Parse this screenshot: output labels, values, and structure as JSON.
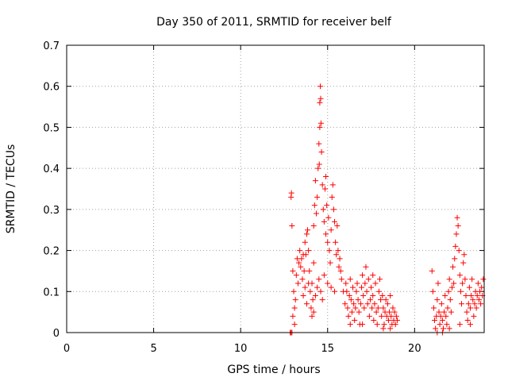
{
  "chart_data": {
    "type": "scatter",
    "title": "Day 350 of 2011, SRMTID for receiver belf",
    "xlabel": "GPS time / hours",
    "ylabel": "SRMTID / TECUs",
    "xlim": [
      0,
      24
    ],
    "ylim": [
      0,
      0.7
    ],
    "xticks": [
      0,
      5,
      10,
      15,
      20
    ],
    "xtick_labels": [
      "0",
      "5",
      "10",
      "15",
      "20"
    ],
    "yticks": [
      0,
      0.1,
      0.2,
      0.3,
      0.4,
      0.5,
      0.6,
      0.7
    ],
    "ytick_labels": [
      "0",
      "0.1",
      "0.2",
      "0.3",
      "0.4",
      "0.5",
      "0.6",
      "0.7"
    ],
    "grid": true,
    "marker": "+",
    "color": "#ff0000",
    "series": [
      {
        "name": "SRMTID",
        "points": [
          [
            12.85,
            0.0
          ],
          [
            12.9,
            0.0
          ],
          [
            12.95,
            0.0
          ],
          [
            12.9,
            0.33
          ],
          [
            12.92,
            0.34
          ],
          [
            12.95,
            0.26
          ],
          [
            13.0,
            0.15
          ],
          [
            13.05,
            0.1
          ],
          [
            13.1,
            0.06
          ],
          [
            13.1,
            0.02
          ],
          [
            13.0,
            0.04
          ],
          [
            13.15,
            0.08
          ],
          [
            13.2,
            0.14
          ],
          [
            13.25,
            0.18
          ],
          [
            13.3,
            0.12
          ],
          [
            13.35,
            0.17
          ],
          [
            13.4,
            0.2
          ],
          [
            13.45,
            0.16
          ],
          [
            13.5,
            0.18
          ],
          [
            13.55,
            0.13
          ],
          [
            13.6,
            0.19
          ],
          [
            13.65,
            0.15
          ],
          [
            13.7,
            0.22
          ],
          [
            13.75,
            0.19
          ],
          [
            13.8,
            0.24
          ],
          [
            13.85,
            0.25
          ],
          [
            13.9,
            0.2
          ],
          [
            13.95,
            0.15
          ],
          [
            14.0,
            0.1
          ],
          [
            14.05,
            0.06
          ],
          [
            14.1,
            0.04
          ],
          [
            14.15,
            0.08
          ],
          [
            14.1,
            0.12
          ],
          [
            14.2,
            0.17
          ],
          [
            14.2,
            0.26
          ],
          [
            14.25,
            0.31
          ],
          [
            14.3,
            0.37
          ],
          [
            14.35,
            0.29
          ],
          [
            14.4,
            0.33
          ],
          [
            14.45,
            0.4
          ],
          [
            14.5,
            0.46
          ],
          [
            14.52,
            0.41
          ],
          [
            14.55,
            0.5
          ],
          [
            14.55,
            0.56
          ],
          [
            14.58,
            0.6
          ],
          [
            14.6,
            0.57
          ],
          [
            14.62,
            0.51
          ],
          [
            14.65,
            0.44
          ],
          [
            14.7,
            0.36
          ],
          [
            14.75,
            0.3
          ],
          [
            14.8,
            0.27
          ],
          [
            14.85,
            0.35
          ],
          [
            14.9,
            0.38
          ],
          [
            14.95,
            0.31
          ],
          [
            14.9,
            0.24
          ],
          [
            15.0,
            0.22
          ],
          [
            15.05,
            0.28
          ],
          [
            15.1,
            0.2
          ],
          [
            15.15,
            0.17
          ],
          [
            15.2,
            0.25
          ],
          [
            15.25,
            0.33
          ],
          [
            15.3,
            0.36
          ],
          [
            15.35,
            0.3
          ],
          [
            15.4,
            0.27
          ],
          [
            15.45,
            0.22
          ],
          [
            15.5,
            0.19
          ],
          [
            15.55,
            0.26
          ],
          [
            15.6,
            0.2
          ],
          [
            15.65,
            0.16
          ],
          [
            15.7,
            0.18
          ],
          [
            15.75,
            0.15
          ],
          [
            15.8,
            0.13
          ],
          [
            15.9,
            0.1
          ],
          [
            14.3,
            0.09
          ],
          [
            14.4,
            0.11
          ],
          [
            14.5,
            0.13
          ],
          [
            14.6,
            0.1
          ],
          [
            14.7,
            0.08
          ],
          [
            14.2,
            0.05
          ],
          [
            14.8,
            0.14
          ],
          [
            15.0,
            0.12
          ],
          [
            15.2,
            0.11
          ],
          [
            15.4,
            0.1
          ],
          [
            13.6,
            0.09
          ],
          [
            13.7,
            0.11
          ],
          [
            13.8,
            0.07
          ],
          [
            13.9,
            0.12
          ],
          [
            16.0,
            0.07
          ],
          [
            16.05,
            0.12
          ],
          [
            16.1,
            0.1
          ],
          [
            16.15,
            0.06
          ],
          [
            16.2,
            0.04
          ],
          [
            16.25,
            0.09
          ],
          [
            16.3,
            0.13
          ],
          [
            16.35,
            0.08
          ],
          [
            16.4,
            0.05
          ],
          [
            16.45,
            0.11
          ],
          [
            16.5,
            0.07
          ],
          [
            16.55,
            0.03
          ],
          [
            16.6,
            0.06
          ],
          [
            16.65,
            0.1
          ],
          [
            16.7,
            0.12
          ],
          [
            16.75,
            0.08
          ],
          [
            16.8,
            0.05
          ],
          [
            16.85,
            0.02
          ],
          [
            16.9,
            0.07
          ],
          [
            16.95,
            0.11
          ],
          [
            17.0,
            0.14
          ],
          [
            17.05,
            0.09
          ],
          [
            17.1,
            0.06
          ],
          [
            17.15,
            0.12
          ],
          [
            17.2,
            0.16
          ],
          [
            17.25,
            0.1
          ],
          [
            17.3,
            0.07
          ],
          [
            17.35,
            0.13
          ],
          [
            17.4,
            0.04
          ],
          [
            17.45,
            0.08
          ],
          [
            17.5,
            0.11
          ],
          [
            17.55,
            0.06
          ],
          [
            17.6,
            0.09
          ],
          [
            17.65,
            0.03
          ],
          [
            17.7,
            0.07
          ],
          [
            17.75,
            0.12
          ],
          [
            17.8,
            0.05
          ],
          [
            17.85,
            0.02
          ],
          [
            17.9,
            0.06
          ],
          [
            17.95,
            0.1
          ],
          [
            18.0,
            0.13
          ],
          [
            18.05,
            0.08
          ],
          [
            18.1,
            0.04
          ],
          [
            18.15,
            0.09
          ],
          [
            18.2,
            0.06
          ],
          [
            18.25,
            0.02
          ],
          [
            18.3,
            0.05
          ],
          [
            18.35,
            0.08
          ],
          [
            18.4,
            0.04
          ],
          [
            18.45,
            0.07
          ],
          [
            18.5,
            0.03
          ],
          [
            18.55,
            0.05
          ],
          [
            18.6,
            0.09
          ],
          [
            18.65,
            0.04
          ],
          [
            18.7,
            0.02
          ],
          [
            18.75,
            0.06
          ],
          [
            18.8,
            0.03
          ],
          [
            18.85,
            0.05
          ],
          [
            18.9,
            0.02
          ],
          [
            18.95,
            0.04
          ],
          [
            19.0,
            0.03
          ],
          [
            16.3,
            0.02
          ],
          [
            17.0,
            0.02
          ],
          [
            17.6,
            0.14
          ],
          [
            18.2,
            0.01
          ],
          [
            18.6,
            0.01
          ],
          [
            21.0,
            0.15
          ],
          [
            21.05,
            0.1
          ],
          [
            21.1,
            0.06
          ],
          [
            21.15,
            0.03
          ],
          [
            21.2,
            0.01
          ],
          [
            21.25,
            0.04
          ],
          [
            21.3,
            0.08
          ],
          [
            21.35,
            0.12
          ],
          [
            21.4,
            0.05
          ],
          [
            21.45,
            0.02
          ],
          [
            21.5,
            0.04
          ],
          [
            21.55,
            0.07
          ],
          [
            21.6,
            0.03
          ],
          [
            21.65,
            0.01
          ],
          [
            21.7,
            0.05
          ],
          [
            21.75,
            0.09
          ],
          [
            21.8,
            0.04
          ],
          [
            21.85,
            0.02
          ],
          [
            21.9,
            0.06
          ],
          [
            21.95,
            0.1
          ],
          [
            22.0,
            0.13
          ],
          [
            22.05,
            0.08
          ],
          [
            22.1,
            0.05
          ],
          [
            22.15,
            0.11
          ],
          [
            22.2,
            0.16
          ],
          [
            22.25,
            0.12
          ],
          [
            22.3,
            0.18
          ],
          [
            22.35,
            0.21
          ],
          [
            22.4,
            0.24
          ],
          [
            22.45,
            0.28
          ],
          [
            22.5,
            0.26
          ],
          [
            22.55,
            0.2
          ],
          [
            22.6,
            0.14
          ],
          [
            22.65,
            0.1
          ],
          [
            22.7,
            0.07
          ],
          [
            22.75,
            0.12
          ],
          [
            22.8,
            0.17
          ],
          [
            22.85,
            0.19
          ],
          [
            22.9,
            0.13
          ],
          [
            22.95,
            0.09
          ],
          [
            23.0,
            0.05
          ],
          [
            23.05,
            0.03
          ],
          [
            23.1,
            0.07
          ],
          [
            23.15,
            0.11
          ],
          [
            23.2,
            0.06
          ],
          [
            23.25,
            0.09
          ],
          [
            23.3,
            0.13
          ],
          [
            23.35,
            0.08
          ],
          [
            23.4,
            0.04
          ],
          [
            23.45,
            0.07
          ],
          [
            23.5,
            0.1
          ],
          [
            23.55,
            0.06
          ],
          [
            23.6,
            0.09
          ],
          [
            23.65,
            0.12
          ],
          [
            23.7,
            0.08
          ],
          [
            23.75,
            0.1
          ],
          [
            23.8,
            0.07
          ],
          [
            23.85,
            0.11
          ],
          [
            23.9,
            0.09
          ],
          [
            23.95,
            0.13
          ],
          [
            21.3,
            0.0
          ],
          [
            21.6,
            0.0
          ],
          [
            22.0,
            0.01
          ],
          [
            22.6,
            0.02
          ],
          [
            23.2,
            0.02
          ]
        ]
      }
    ]
  }
}
